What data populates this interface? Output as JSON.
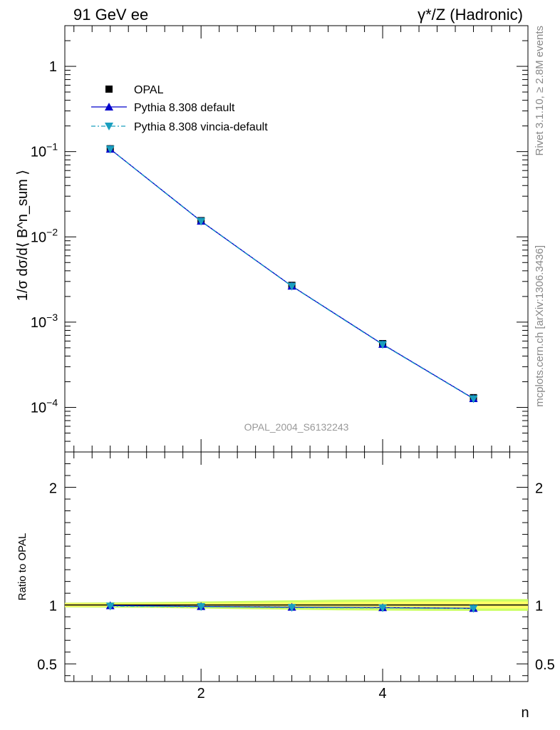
{
  "header": {
    "left": "91 GeV ee",
    "right": "γ*/Z (Hadronic)"
  },
  "side": {
    "rivet": "Rivet 3.1.10, ≥ 2.8M events",
    "mcplots": "mcplots.cern.ch [arXiv:1306.3436]"
  },
  "watermark": "OPAL_2004_S6132243",
  "chart_data": [
    {
      "type": "line",
      "panel": "main",
      "ylabel": "1/σ dσ/d⟨ B^n_sum ⟩",
      "yscale": "log",
      "ylim": [
        3e-05,
        3
      ],
      "xlim": [
        0.5,
        5.6
      ],
      "x": [
        1,
        2,
        3,
        4,
        5
      ],
      "y_tick_labels": [
        "1",
        "10^-1",
        "10^-2",
        "10^-3",
        "10^-4"
      ],
      "series": [
        {
          "name": "OPAL",
          "values": [
            0.108,
            0.0155,
            0.0027,
            0.00056,
            0.00013
          ],
          "color": "#000000",
          "marker": "square"
        },
        {
          "name": "Pythia 8.308 default",
          "values": [
            0.107,
            0.0153,
            0.00265,
            0.00055,
            0.000127
          ],
          "color": "#0000cc",
          "marker": "triangle-up"
        },
        {
          "name": "Pythia 8.308 vincia-default",
          "values": [
            0.1065,
            0.0152,
            0.00263,
            0.000545,
            0.000126
          ],
          "color": "#1a9fbf",
          "marker": "triangle-down"
        }
      ],
      "legend_position": "top-left"
    },
    {
      "type": "line",
      "panel": "ratio",
      "ylabel": "Ratio to OPAL",
      "xlabel": "n",
      "ylim": [
        0.35,
        2.3
      ],
      "xlim": [
        0.5,
        5.6
      ],
      "x": [
        1,
        2,
        3,
        4,
        5
      ],
      "x_tick_labels": [
        "2",
        "4"
      ],
      "y_tick_labels": [
        "0.5",
        "1",
        "2"
      ],
      "band": {
        "x": [
          0.5,
          1.5,
          2.5,
          3.5,
          4.5,
          5.6
        ],
        "inner": [
          0.015,
          0.015,
          0.02,
          0.025,
          0.03,
          0.03
        ],
        "outer": [
          0.02,
          0.025,
          0.035,
          0.045,
          0.05,
          0.05
        ],
        "inner_color": "#ffff66",
        "outer_color": "#ccff66"
      },
      "series": [
        {
          "name": "Pythia 8.308 default",
          "values": [
            0.995,
            0.988,
            0.982,
            0.978,
            0.972
          ],
          "color": "#0000cc",
          "marker": "triangle-up"
        },
        {
          "name": "Pythia 8.308 vincia-default",
          "values": [
            0.99,
            0.985,
            0.978,
            0.975,
            0.97
          ],
          "color": "#1a9fbf",
          "marker": "triangle-down"
        }
      ]
    }
  ]
}
